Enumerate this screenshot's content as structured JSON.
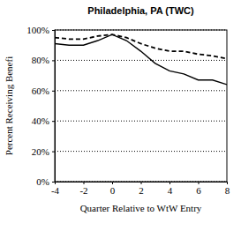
{
  "chart_data": {
    "type": "line",
    "title": "Philadelphia, PA (TWC)",
    "x_label": "Quarter Relative to WtW Entry",
    "y_label": "Percent Receiving Benefi",
    "x": [
      -4,
      -3,
      -2,
      -1,
      0,
      1,
      2,
      3,
      4,
      5,
      6,
      7,
      8
    ],
    "series": [
      {
        "color": "#000000",
        "line_style": "solid",
        "values": [
          91,
          90,
          90,
          93,
          97,
          93,
          86,
          78,
          73,
          71,
          67,
          67,
          64
        ]
      },
      {
        "color": "#000000",
        "line_style": "dashed",
        "values": [
          95,
          94,
          94,
          96,
          97,
          95,
          91,
          88,
          86,
          86,
          84,
          83,
          81
        ]
      }
    ],
    "xlim": [
      -4,
      8
    ],
    "xticks": [
      -4,
      -2,
      0,
      2,
      4,
      6,
      8
    ],
    "ylim": [
      0,
      100
    ],
    "yticks": [
      {
        "value": 0,
        "label": "0%"
      },
      {
        "value": 20,
        "label": "20%"
      },
      {
        "value": 40,
        "label": "40%"
      },
      {
        "value": 60,
        "label": "60%"
      },
      {
        "value": 80,
        "label": "80%"
      },
      {
        "value": 100,
        "label": "100%"
      }
    ],
    "grid": true
  }
}
